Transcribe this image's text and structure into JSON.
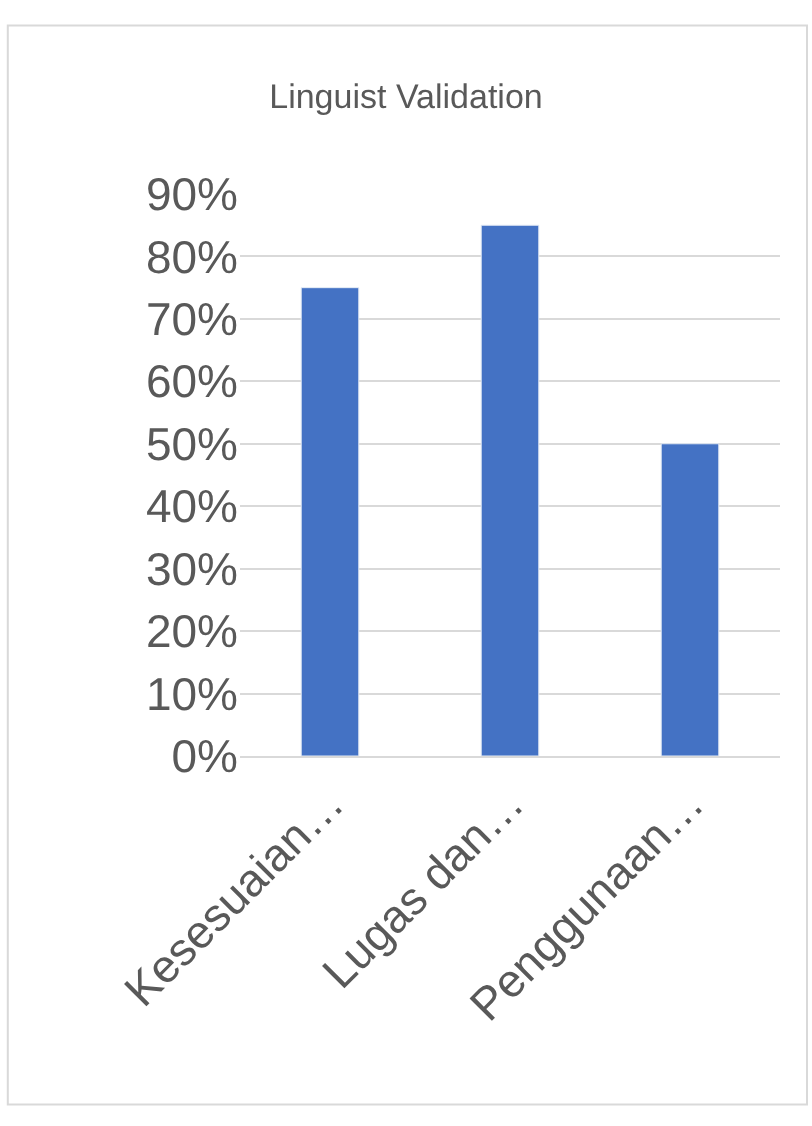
{
  "chart_data": {
    "type": "bar",
    "title": "Linguist Validation",
    "categories": [
      "Kesesuaian…",
      "Lugas dan…",
      "Penggunaan…"
    ],
    "values": [
      75,
      85,
      50
    ],
    "color": "#4472c4",
    "ylim": [
      0,
      90
    ],
    "yticks": [
      {
        "value": 0,
        "label": "0%"
      },
      {
        "value": 10,
        "label": "10%"
      },
      {
        "value": 20,
        "label": "20%"
      },
      {
        "value": 30,
        "label": "30%"
      },
      {
        "value": 40,
        "label": "40%"
      },
      {
        "value": 50,
        "label": "50%"
      },
      {
        "value": 60,
        "label": "60%"
      },
      {
        "value": 70,
        "label": "70%"
      },
      {
        "value": 80,
        "label": "80%"
      },
      {
        "value": 90,
        "label": "90%"
      }
    ],
    "grid": "y",
    "legend": false
  }
}
